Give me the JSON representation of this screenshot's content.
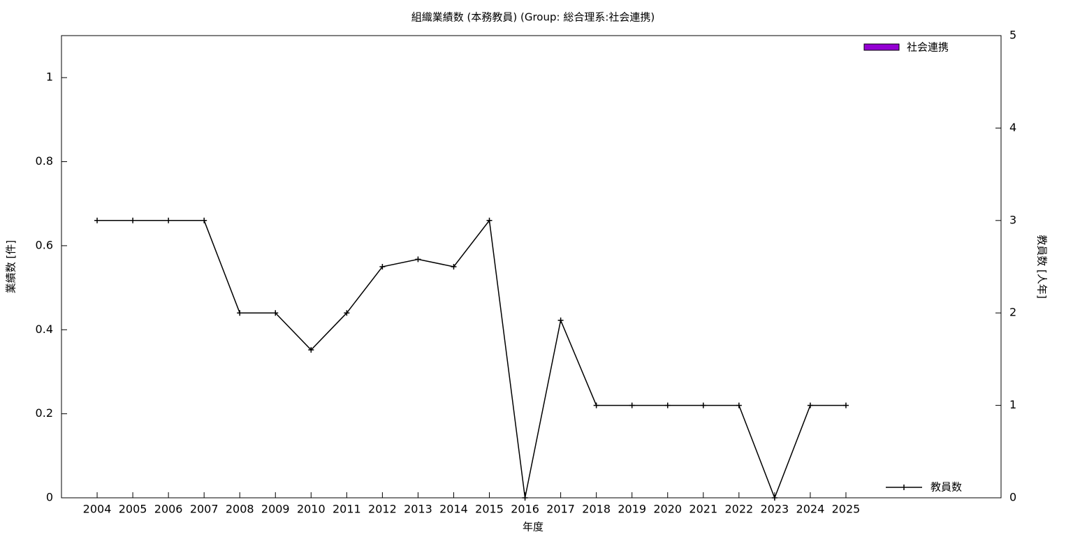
{
  "chart_data": {
    "type": "bar+line",
    "title": "組織業績数 (本務教員) (Group: 総合理系:社会連携)",
    "xlabel": "年度",
    "ylabel": "業績数 [件]",
    "y2label": "教員数 [人年]",
    "x": [
      2004,
      2005,
      2006,
      2007,
      2008,
      2009,
      2010,
      2011,
      2012,
      2013,
      2014,
      2015,
      2016,
      2017,
      2018,
      2019,
      2020,
      2021,
      2022,
      2023,
      2024,
      2025
    ],
    "xlim": [
      2003,
      2029.35
    ],
    "xticks": [
      2004,
      2005,
      2006,
      2007,
      2008,
      2009,
      2010,
      2011,
      2012,
      2013,
      2014,
      2015,
      2016,
      2017,
      2018,
      2019,
      2020,
      2021,
      2022,
      2023,
      2024,
      2025
    ],
    "ylim": [
      0,
      1.1
    ],
    "yticks": [
      0,
      0.2,
      0.4,
      0.6,
      0.8,
      1
    ],
    "y2lim": [
      0,
      5
    ],
    "y2ticks": [
      0,
      1,
      2,
      3,
      4,
      5
    ],
    "series": [
      {
        "name": "社会連携",
        "type": "bar",
        "color": "#9400d3",
        "values": [
          0,
          0,
          0,
          0,
          0,
          0,
          0,
          0,
          0,
          0,
          0,
          0,
          0,
          0,
          0,
          0,
          0,
          0,
          0,
          0,
          0,
          0
        ]
      },
      {
        "name": "教員数",
        "type": "line",
        "axis": "y2",
        "color": "#000000",
        "values": [
          3,
          3,
          3,
          3,
          2,
          2,
          1.6,
          2,
          2.5,
          2.58,
          2.5,
          3,
          0,
          1.92,
          1,
          1,
          1,
          1,
          1,
          0,
          1,
          1
        ]
      }
    ]
  }
}
